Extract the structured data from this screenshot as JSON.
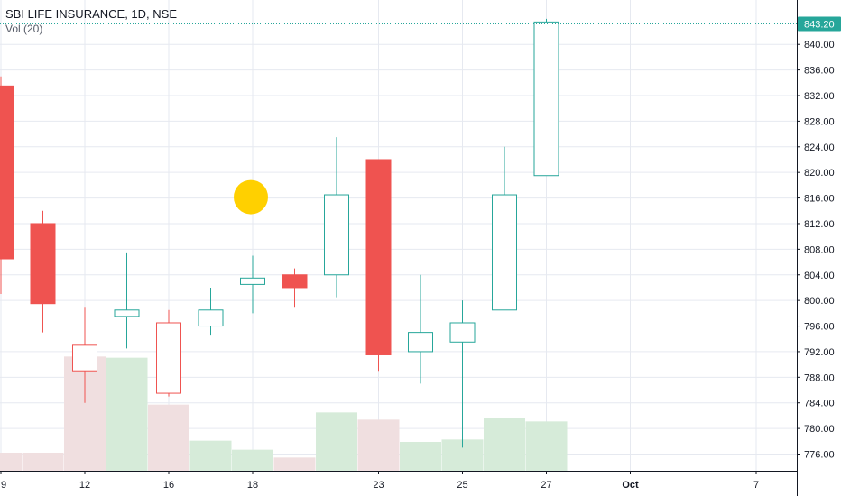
{
  "legend": {
    "title": "SBI LIFE INSURANCE, 1D, NSE",
    "subtitle": "Vol (20)"
  },
  "colors": {
    "up": "#26a69a",
    "down": "#ef5350",
    "vol_up": "#d6ebd9",
    "vol_down": "#f0dfe0",
    "grid": "#e6e9f0",
    "marker": "#ffd000",
    "price_line": "#26a69a"
  },
  "chart_data": {
    "type": "candlestick",
    "instrument": "SBI LIFE INSURANCE",
    "interval": "1D",
    "exchange": "NSE",
    "y_ticks": [
      "776.00",
      "780.00",
      "784.00",
      "788.00",
      "792.00",
      "796.00",
      "800.00",
      "804.00",
      "808.00",
      "812.00",
      "816.00",
      "820.00",
      "824.00",
      "828.00",
      "832.00",
      "836.00",
      "840.00"
    ],
    "ylim": [
      773.5,
      845
    ],
    "x_ticks": [
      {
        "label": "9",
        "slot": 0
      },
      {
        "label": "12",
        "slot": 2
      },
      {
        "label": "16",
        "slot": 4
      },
      {
        "label": "18",
        "slot": 6
      },
      {
        "label": "23",
        "slot": 9
      },
      {
        "label": "25",
        "slot": 11
      },
      {
        "label": "27",
        "slot": 13
      },
      {
        "label": "Oct",
        "slot": 15
      },
      {
        "label": "7",
        "slot": 18
      }
    ],
    "last_price": "843.20",
    "last_price_value": 843.2,
    "candles": [
      {
        "slot": 0,
        "open": 833.5,
        "high": 835.0,
        "low": 801.0,
        "close": 806.5,
        "filled": true,
        "dir": "down",
        "volume": 3.0
      },
      {
        "slot": 1,
        "open": 812.0,
        "high": 814.0,
        "low": 795.0,
        "close": 799.5,
        "filled": true,
        "dir": "down",
        "volume": 3.0
      },
      {
        "slot": 2,
        "open": 789.0,
        "high": 799.0,
        "low": 784.0,
        "close": 793.0,
        "filled": false,
        "dir": "down",
        "volume": 19.0
      },
      {
        "slot": 3,
        "open": 797.5,
        "high": 807.5,
        "low": 792.5,
        "close": 798.5,
        "filled": false,
        "dir": "up",
        "volume": 18.8
      },
      {
        "slot": 4,
        "open": 785.5,
        "high": 798.5,
        "low": 785.0,
        "close": 796.5,
        "filled": false,
        "dir": "down",
        "volume": 11.0
      },
      {
        "slot": 5,
        "open": 796.0,
        "high": 802.0,
        "low": 794.5,
        "close": 798.5,
        "filled": false,
        "dir": "up",
        "volume": 5.0
      },
      {
        "slot": 6,
        "open": 802.5,
        "high": 807.0,
        "low": 798.0,
        "close": 803.5,
        "filled": false,
        "dir": "up",
        "volume": 3.5
      },
      {
        "slot": 7,
        "open": 804.0,
        "high": 805.0,
        "low": 799.0,
        "close": 802.0,
        "filled": true,
        "dir": "down",
        "volume": 2.2
      },
      {
        "slot": 8,
        "open": 804.0,
        "high": 825.5,
        "low": 800.5,
        "close": 816.5,
        "filled": false,
        "dir": "up",
        "volume": 9.7
      },
      {
        "slot": 9,
        "open": 822.0,
        "high": 822.0,
        "low": 789.0,
        "close": 791.5,
        "filled": true,
        "dir": "down",
        "volume": 8.5
      },
      {
        "slot": 10,
        "open": 792.0,
        "high": 804.0,
        "low": 787.0,
        "close": 795.0,
        "filled": false,
        "dir": "up",
        "volume": 4.8
      },
      {
        "slot": 11,
        "open": 793.5,
        "high": 800.0,
        "low": 777.0,
        "close": 796.5,
        "filled": false,
        "dir": "up",
        "volume": 5.2
      },
      {
        "slot": 12,
        "open": 798.5,
        "high": 824.0,
        "low": 798.5,
        "close": 816.5,
        "filled": false,
        "dir": "up",
        "volume": 8.8
      },
      {
        "slot": 13,
        "open": 819.5,
        "high": 844.0,
        "low": 819.5,
        "close": 843.5,
        "filled": false,
        "dir": "up",
        "volume": 8.2
      }
    ],
    "marker": {
      "slot": 6,
      "price": 816.0
    }
  }
}
